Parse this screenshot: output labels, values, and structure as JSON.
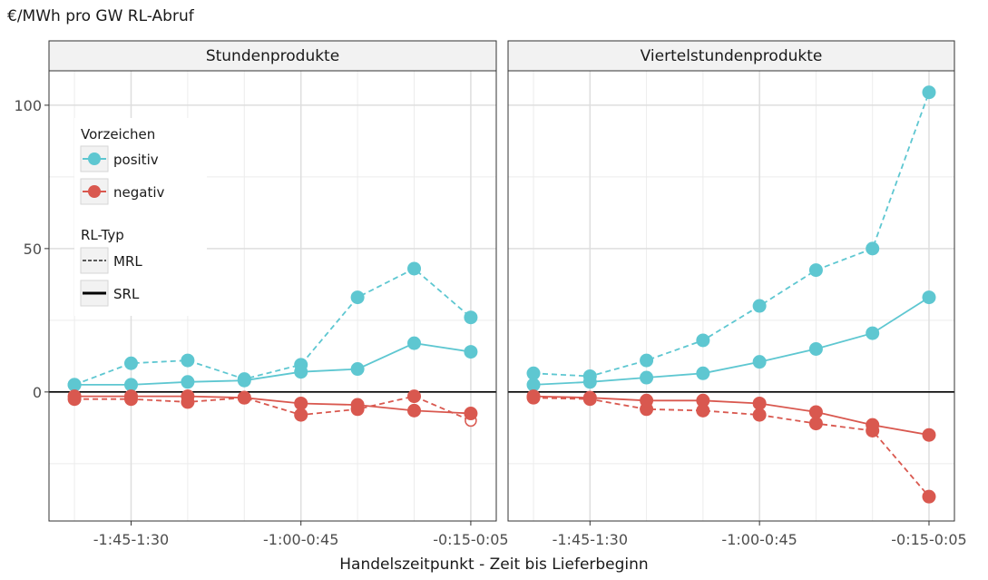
{
  "chart_data": {
    "type": "line",
    "ylabel": "€/MWh pro GW RL-Abruf",
    "xlabel": "Handelszeitpunkt - Zeit bis Lieferbeginn",
    "ylim": [
      -45,
      112
    ],
    "y_ticks": [
      0,
      50,
      100
    ],
    "x_tick_labels": [
      "-1:45-1:30",
      "-1:00-0:45",
      "-0:15-0:05"
    ],
    "x_tick_index": [
      1,
      4,
      7
    ],
    "x_index_range": [
      -0.45,
      7.45
    ],
    "grid": true,
    "hline": 0,
    "legend": {
      "position": "top-left",
      "color_title": "Vorzeichen",
      "color_items": [
        {
          "label": "positiv",
          "color": "#5ec7d1"
        },
        {
          "label": "negativ",
          "color": "#d9584f"
        }
      ],
      "linetype_title": "RL-Typ",
      "linetype_items": [
        {
          "label": "MRL",
          "dash": "dashed"
        },
        {
          "label": "SRL",
          "dash": "solid"
        }
      ]
    },
    "panels": [
      {
        "title": "Stundenprodukte",
        "series": [
          {
            "sign": "positiv",
            "type": "MRL",
            "color": "#5ec7d1",
            "dash": true,
            "values": [
              2.5,
              10,
              11,
              4.5,
              9.5,
              33,
              43,
              26
            ],
            "open": []
          },
          {
            "sign": "positiv",
            "type": "SRL",
            "color": "#5ec7d1",
            "dash": false,
            "values": [
              2.5,
              2.5,
              3.5,
              4,
              7,
              8,
              17,
              14
            ],
            "open": []
          },
          {
            "sign": "negativ",
            "type": "MRL",
            "color": "#d9584f",
            "dash": true,
            "values": [
              -2.5,
              -2.5,
              -3.5,
              -2,
              -8,
              -6,
              -1.5,
              -10
            ],
            "open": [
              7
            ]
          },
          {
            "sign": "negativ",
            "type": "SRL",
            "color": "#d9584f",
            "dash": false,
            "values": [
              -1.5,
              -1.5,
              -1.5,
              -2,
              -4,
              -4.5,
              -6.5,
              -7.5
            ],
            "open": []
          }
        ]
      },
      {
        "title": "Viertelstundenprodukte",
        "series": [
          {
            "sign": "positiv",
            "type": "MRL",
            "color": "#5ec7d1",
            "dash": true,
            "values": [
              6.5,
              5.5,
              11,
              18,
              30,
              42.5,
              50,
              104.5
            ],
            "open": []
          },
          {
            "sign": "positiv",
            "type": "SRL",
            "color": "#5ec7d1",
            "dash": false,
            "values": [
              2.5,
              3.5,
              5,
              6.5,
              10.5,
              15,
              20.5,
              33
            ],
            "open": []
          },
          {
            "sign": "negativ",
            "type": "MRL",
            "color": "#d9584f",
            "dash": true,
            "values": [
              -2,
              -2.5,
              -6,
              -6.5,
              -8,
              -11,
              -13.5,
              -36.5
            ],
            "open": []
          },
          {
            "sign": "negativ",
            "type": "SRL",
            "color": "#d9584f",
            "dash": false,
            "values": [
              -1.5,
              -2,
              -3,
              -3,
              -4,
              -7,
              -11.5,
              -15
            ],
            "open": []
          }
        ]
      }
    ]
  }
}
